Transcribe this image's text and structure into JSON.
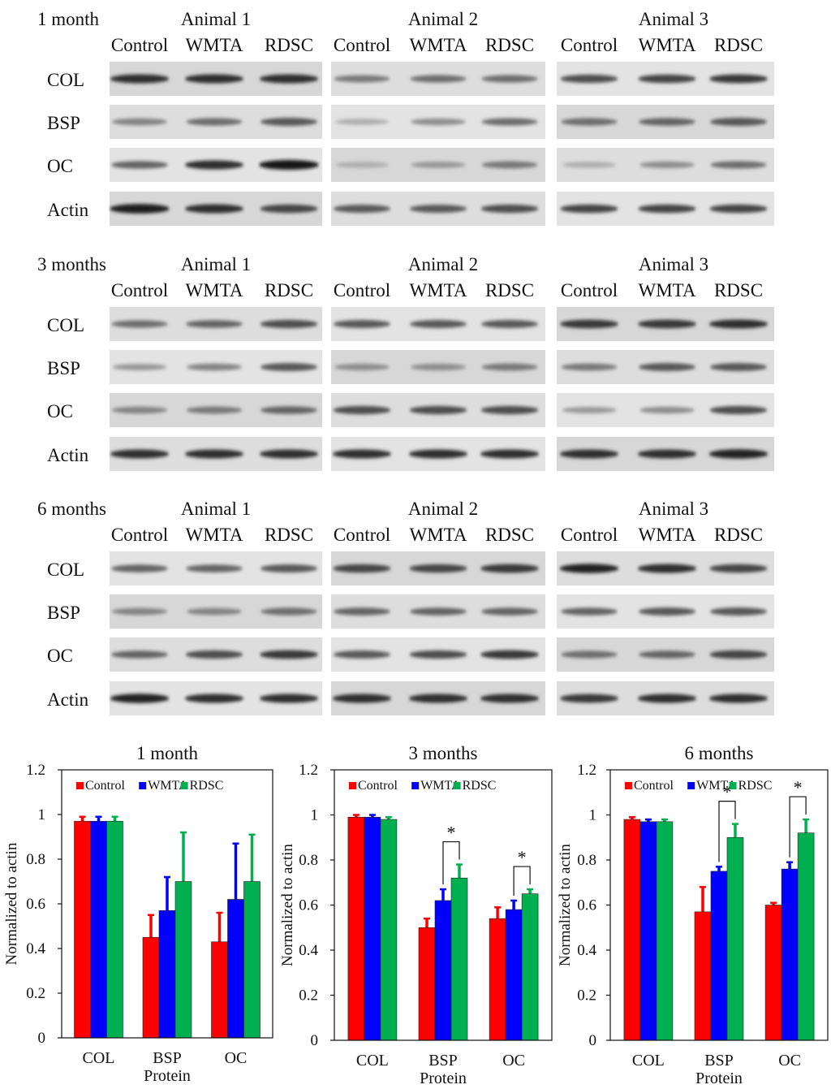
{
  "blot_panels": [
    {
      "time_label": "1 month",
      "animals": [
        "Animal 1",
        "Animal 2",
        "Animal 3"
      ],
      "lanes": [
        "Control",
        "WMTA",
        "RDSC"
      ],
      "proteins": [
        "COL",
        "BSP",
        "OC",
        "Actin"
      ],
      "intensity": [
        [
          [
            0.85,
            0.85,
            0.85
          ],
          [
            0.5,
            0.55,
            0.55
          ],
          [
            0.7,
            0.75,
            0.8
          ]
        ],
        [
          [
            0.45,
            0.55,
            0.65
          ],
          [
            0.25,
            0.4,
            0.55
          ],
          [
            0.55,
            0.6,
            0.65
          ]
        ],
        [
          [
            0.6,
            0.85,
            0.98
          ],
          [
            0.25,
            0.35,
            0.5
          ],
          [
            0.25,
            0.4,
            0.55
          ]
        ],
        [
          [
            0.95,
            0.85,
            0.75
          ],
          [
            0.65,
            0.65,
            0.7
          ],
          [
            0.75,
            0.75,
            0.75
          ]
        ]
      ]
    },
    {
      "time_label": "3 months",
      "animals": [
        "Animal 1",
        "Animal 2",
        "Animal 3"
      ],
      "lanes": [
        "Control",
        "WMTA",
        "RDSC"
      ],
      "proteins": [
        "COL",
        "BSP",
        "OC",
        "Actin"
      ],
      "intensity": [
        [
          [
            0.55,
            0.6,
            0.7
          ],
          [
            0.65,
            0.65,
            0.65
          ],
          [
            0.8,
            0.8,
            0.85
          ]
        ],
        [
          [
            0.35,
            0.45,
            0.65
          ],
          [
            0.4,
            0.4,
            0.5
          ],
          [
            0.5,
            0.65,
            0.65
          ]
        ],
        [
          [
            0.45,
            0.5,
            0.6
          ],
          [
            0.7,
            0.7,
            0.7
          ],
          [
            0.35,
            0.4,
            0.7
          ]
        ],
        [
          [
            0.85,
            0.85,
            0.85
          ],
          [
            0.85,
            0.85,
            0.85
          ],
          [
            0.85,
            0.85,
            0.9
          ]
        ]
      ]
    },
    {
      "time_label": "6 months",
      "animals": [
        "Animal 1",
        "Animal 2",
        "Animal 3"
      ],
      "lanes": [
        "Control",
        "WMTA",
        "RDSC"
      ],
      "proteins": [
        "COL",
        "BSP",
        "OC",
        "Actin"
      ],
      "intensity": [
        [
          [
            0.6,
            0.6,
            0.65
          ],
          [
            0.75,
            0.75,
            0.8
          ],
          [
            0.9,
            0.85,
            0.75
          ]
        ],
        [
          [
            0.45,
            0.45,
            0.55
          ],
          [
            0.6,
            0.6,
            0.6
          ],
          [
            0.6,
            0.65,
            0.65
          ]
        ],
        [
          [
            0.6,
            0.7,
            0.8
          ],
          [
            0.65,
            0.7,
            0.8
          ],
          [
            0.55,
            0.6,
            0.75
          ]
        ],
        [
          [
            0.9,
            0.85,
            0.85
          ],
          [
            0.85,
            0.85,
            0.85
          ],
          [
            0.8,
            0.85,
            0.85
          ]
        ]
      ]
    }
  ],
  "colors": {
    "Control": "#ff0000",
    "WMTA": "#0000ff",
    "RDSC": "#00b050"
  },
  "chart_data": [
    {
      "type": "bar",
      "title": "1 month",
      "categories": [
        "COL",
        "BSP",
        "OC"
      ],
      "xlabel": "Protein",
      "ylabel": "Normalized to actin",
      "ylim": [
        0,
        1.2
      ],
      "yticks": [
        "0",
        "0.2",
        "0.4",
        "0.6",
        "0.8",
        "1",
        "1.2"
      ],
      "legend_placement": "top",
      "series": [
        {
          "name": "Control",
          "values": [
            0.97,
            0.45,
            0.43
          ],
          "errors": [
            0.02,
            0.1,
            0.13
          ]
        },
        {
          "name": "WMTA",
          "values": [
            0.97,
            0.57,
            0.62
          ],
          "errors": [
            0.02,
            0.15,
            0.25
          ]
        },
        {
          "name": "RDSC",
          "values": [
            0.97,
            0.7,
            0.7
          ],
          "errors": [
            0.02,
            0.22,
            0.21
          ]
        }
      ],
      "significance": []
    },
    {
      "type": "bar",
      "title": "3 months",
      "categories": [
        "COL",
        "BSP",
        "OC"
      ],
      "xlabel": "Protein",
      "ylabel": "Normalized to actin",
      "ylim": [
        0,
        1.2
      ],
      "yticks": [
        "0",
        "0.2",
        "0.4",
        "0.6",
        "0.8",
        "1",
        "1.2"
      ],
      "legend_placement": "top",
      "series": [
        {
          "name": "Control",
          "values": [
            0.99,
            0.5,
            0.54
          ],
          "errors": [
            0.01,
            0.04,
            0.05
          ]
        },
        {
          "name": "WMTA",
          "values": [
            0.99,
            0.62,
            0.58
          ],
          "errors": [
            0.01,
            0.05,
            0.04
          ]
        },
        {
          "name": "RDSC",
          "values": [
            0.98,
            0.72,
            0.65
          ],
          "errors": [
            0.01,
            0.06,
            0.02
          ]
        }
      ],
      "significance": [
        {
          "category_index": 1,
          "from": 1,
          "to": 2,
          "label": "*"
        },
        {
          "category_index": 2,
          "from": 1,
          "to": 2,
          "label": "*"
        }
      ]
    },
    {
      "type": "bar",
      "title": "6 months",
      "categories": [
        "COL",
        "BSP",
        "OC"
      ],
      "xlabel": "Protein",
      "ylabel": "Normalized to actin",
      "ylim": [
        0,
        1.2
      ],
      "yticks": [
        "0",
        "0.2",
        "0.4",
        "0.6",
        "0.8",
        "1",
        "1.2"
      ],
      "legend_placement": "top",
      "series": [
        {
          "name": "Control",
          "values": [
            0.98,
            0.57,
            0.6
          ],
          "errors": [
            0.01,
            0.11,
            0.01
          ]
        },
        {
          "name": "WMTA",
          "values": [
            0.97,
            0.75,
            0.76
          ],
          "errors": [
            0.01,
            0.02,
            0.03
          ]
        },
        {
          "name": "RDSC",
          "values": [
            0.97,
            0.9,
            0.92
          ],
          "errors": [
            0.01,
            0.06,
            0.06
          ]
        }
      ],
      "significance": [
        {
          "category_index": 1,
          "from": 1,
          "to": 2,
          "label": "*"
        },
        {
          "category_index": 2,
          "from": 1,
          "to": 2,
          "label": "*"
        }
      ]
    }
  ]
}
